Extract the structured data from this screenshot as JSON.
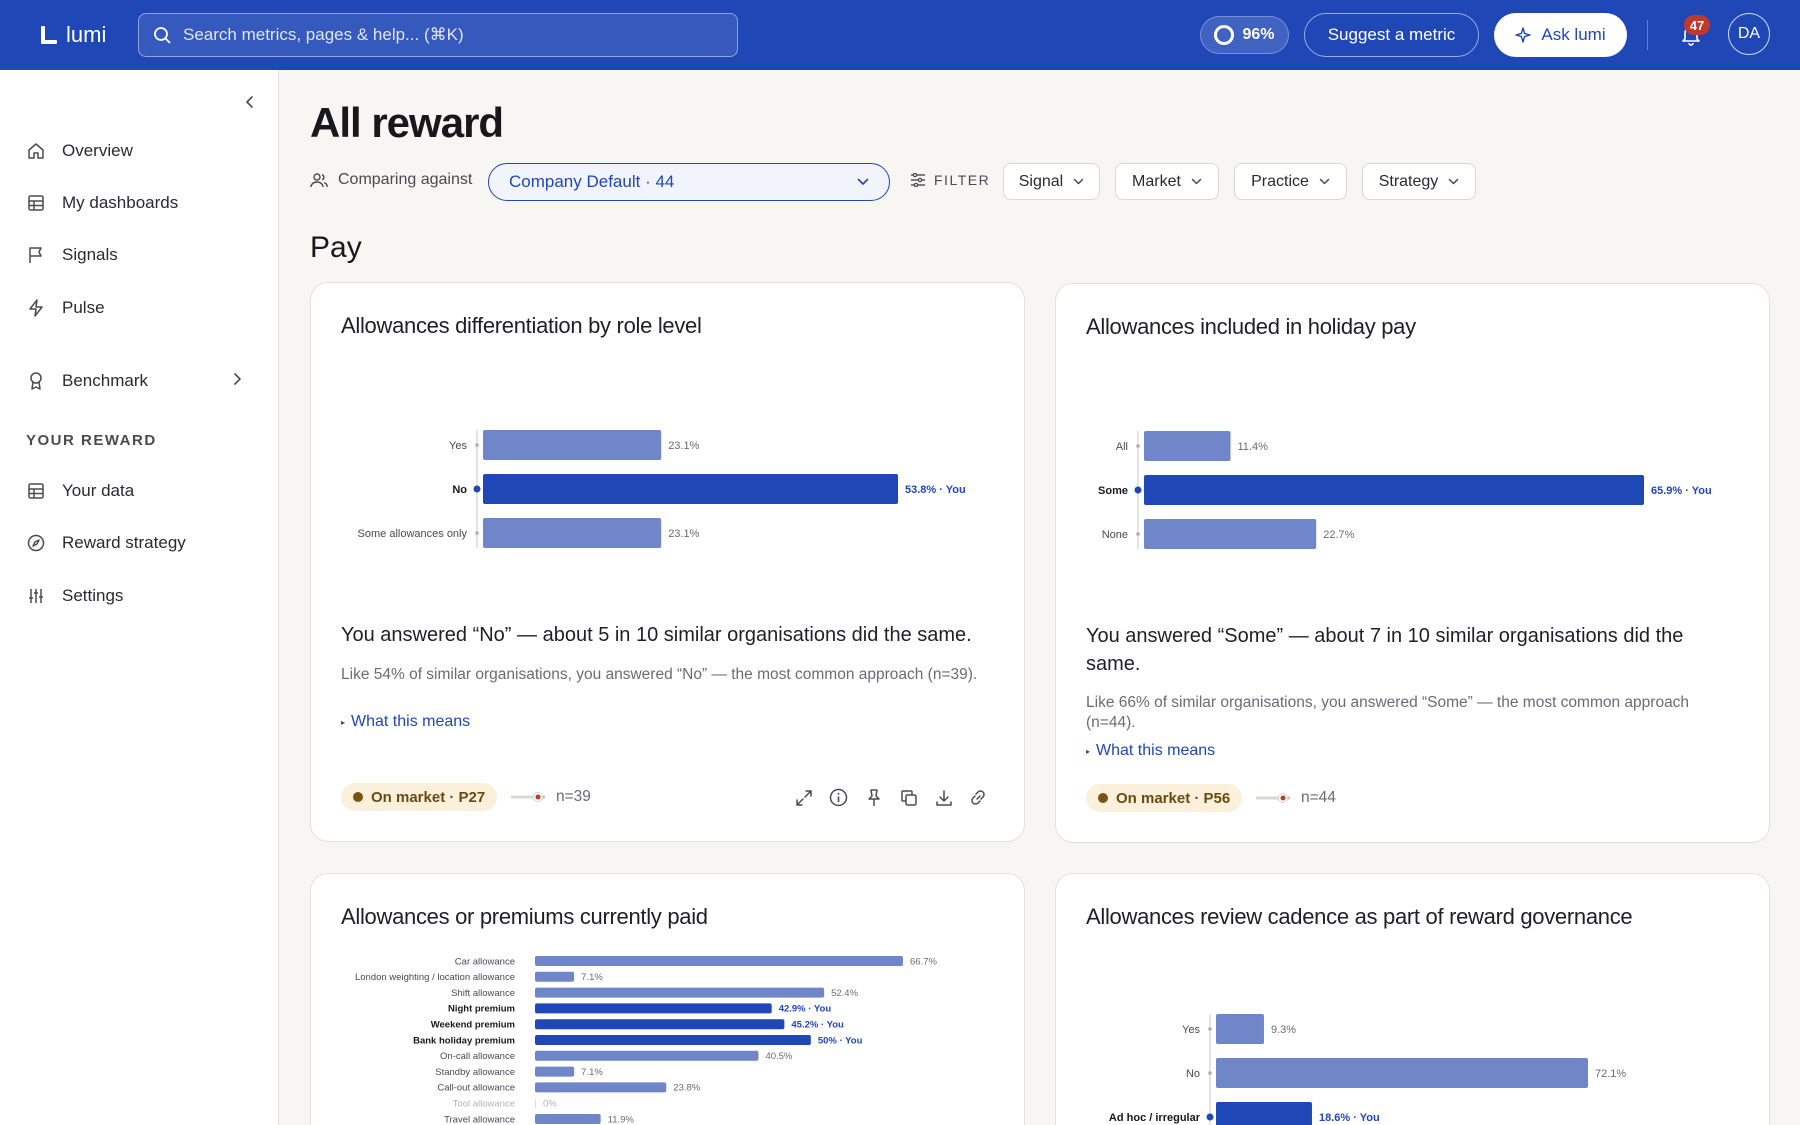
{
  "app": {
    "name": "lumi"
  },
  "search": {
    "placeholder": "Search metrics, pages & help... (⌘K)"
  },
  "topbar": {
    "completion": "96%",
    "suggest_label": "Suggest a metric",
    "ask_label": "Ask lumi",
    "notifications": "47",
    "avatar_initials": "DA"
  },
  "sidebar": {
    "items": [
      {
        "label": "Overview",
        "icon": "home-icon"
      },
      {
        "label": "My dashboards",
        "icon": "grid-icon"
      },
      {
        "label": "Signals",
        "icon": "flag-icon"
      },
      {
        "label": "Pulse",
        "icon": "bolt-icon"
      },
      {
        "label": "Benchmark",
        "icon": "award-icon"
      },
      {
        "label": "Your data",
        "icon": "grid-icon"
      },
      {
        "label": "Reward strategy",
        "icon": "compass-icon"
      },
      {
        "label": "Settings",
        "icon": "sliders-icon"
      }
    ],
    "section_label": "YOUR REWARD"
  },
  "page": {
    "title": "All reward",
    "comparing_label": "Comparing against",
    "comparing_value": "Company Default · 44",
    "filter_label": "FILTER",
    "filters": [
      "Signal",
      "Market",
      "Practice",
      "Strategy"
    ],
    "section": "Pay"
  },
  "cards": [
    {
      "title": "Allowances differentiation by role level",
      "headline": "You answered “No” — about 5 in 10 similar organisations did the same.",
      "subtext": "Like 54% of similar organisations, you answered “No” — the most common approach (n=39).",
      "what_this_means": "What this means",
      "market": "On market · P27",
      "n": "n=39",
      "chart_data": {
        "type": "bar",
        "orientation": "horizontal",
        "categories": [
          "Yes",
          "No",
          "Some allowances only"
        ],
        "values": [
          23.1,
          53.8,
          23.1
        ],
        "value_labels": [
          "23.1%",
          "53.8% · You",
          "23.1%"
        ],
        "highlight": "No",
        "colors": {
          "default": "#6f86c9",
          "highlight": "#1f47b6"
        }
      }
    },
    {
      "title": "Allowances included in holiday pay",
      "headline": "You answered “Some” — about 7 in 10 similar organisations did the same.",
      "subtext": "Like 66% of similar organisations, you answered “Some” — the most common approach (n=44).",
      "what_this_means": "What this means",
      "market": "On market · P56",
      "n": "n=44",
      "chart_data": {
        "type": "bar",
        "orientation": "horizontal",
        "categories": [
          "All",
          "Some",
          "None"
        ],
        "values": [
          11.4,
          65.9,
          22.7
        ],
        "value_labels": [
          "11.4%",
          "65.9% · You",
          "22.7%"
        ],
        "highlight": "Some",
        "colors": {
          "default": "#6f86c9",
          "highlight": "#1f47b6"
        }
      }
    },
    {
      "title": "Allowances or premiums currently paid",
      "chart_data": {
        "type": "bar",
        "orientation": "horizontal",
        "categories": [
          "Car allowance",
          "London weighting / location allowance",
          "Shift allowance",
          "Night premium",
          "Weekend premium",
          "Bank holiday premium",
          "On-call allowance",
          "Standby allowance",
          "Call-out allowance",
          "Tool allowance",
          "Travel allowance"
        ],
        "values": [
          66.7,
          7.1,
          52.4,
          42.9,
          45.2,
          50,
          40.5,
          7.1,
          23.8,
          0,
          11.9
        ],
        "value_labels": [
          "66.7%",
          "7.1%",
          "52.4%",
          "42.9% · You",
          "45.2% · You",
          "50% · You",
          "40.5%",
          "7.1%",
          "23.8%",
          "0%",
          "11.9%"
        ],
        "highlight": [
          "Night premium",
          "Weekend premium",
          "Bank holiday premium"
        ],
        "colors": {
          "default": "#6f86c9",
          "highlight": "#1f47b6"
        }
      }
    },
    {
      "title": "Allowances review cadence as part of reward governance",
      "chart_data": {
        "type": "bar",
        "orientation": "horizontal",
        "categories": [
          "Yes",
          "No",
          "Ad hoc / irregular"
        ],
        "values": [
          9.3,
          72.1,
          18.6
        ],
        "value_labels": [
          "9.3%",
          "72.1%",
          "18.6% · You"
        ],
        "highlight": "Ad hoc / irregular",
        "colors": {
          "default": "#6f86c9",
          "highlight": "#1f47b6"
        }
      }
    }
  ]
}
